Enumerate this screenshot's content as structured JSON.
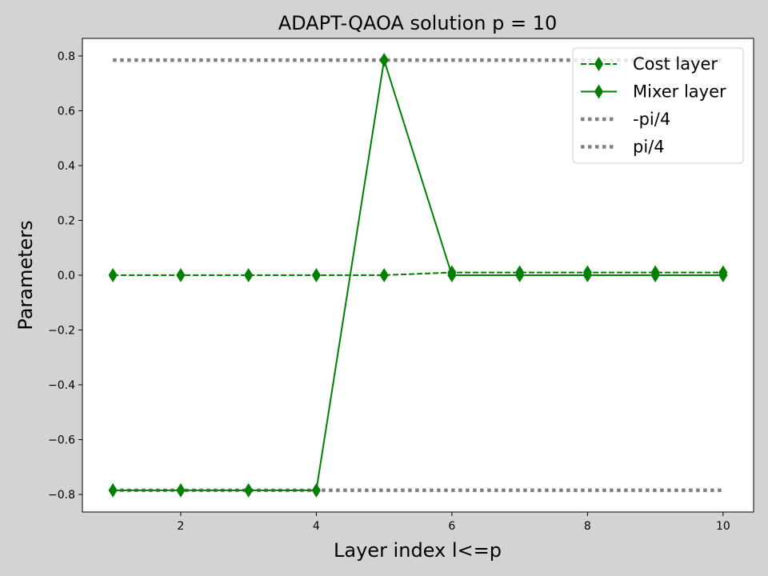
{
  "chart_data": {
    "type": "line",
    "title": "ADAPT-QAOA solution p = 10",
    "xlabel": "Layer index l<=p",
    "ylabel": "Parameters",
    "xlim": [
      0.55,
      10.45
    ],
    "ylim": [
      -0.864,
      0.864
    ],
    "xticks": [
      2,
      4,
      6,
      8,
      10
    ],
    "xtick_labels": [
      "2",
      "4",
      "6",
      "8",
      "10"
    ],
    "yticks": [
      -0.8,
      -0.6,
      -0.4,
      -0.2,
      0.0,
      0.2,
      0.4,
      0.6,
      0.8
    ],
    "ytick_labels": [
      "−0.8",
      "−0.6",
      "−0.4",
      "−0.2",
      "0.0",
      "0.2",
      "0.4",
      "0.6",
      "0.8"
    ],
    "grid": false,
    "legend_position": "top-right",
    "x": [
      1,
      2,
      3,
      4,
      5,
      6,
      7,
      8,
      9,
      10
    ],
    "series": [
      {
        "name": "Cost layer",
        "style": "dashed",
        "marker": "thin_diamond",
        "color": "#008000",
        "values": [
          0.0,
          0.0,
          0.0,
          0.0,
          0.0,
          0.01,
          0.01,
          0.01,
          0.01,
          0.01
        ]
      },
      {
        "name": "Mixer layer",
        "style": "solid",
        "marker": "thin_diamond",
        "color": "#008000",
        "values": [
          -0.785,
          -0.785,
          -0.785,
          -0.785,
          0.785,
          0.0,
          0.0,
          0.0,
          0.0,
          0.0
        ]
      },
      {
        "name": "-pi/4",
        "style": "dotted",
        "marker": "none",
        "color": "#808080",
        "values": [
          -0.785,
          -0.785,
          -0.785,
          -0.785,
          -0.785,
          -0.785,
          -0.785,
          -0.785,
          -0.785,
          -0.785
        ]
      },
      {
        "name": "pi/4",
        "style": "dotted",
        "marker": "none",
        "color": "#808080",
        "values": [
          0.785,
          0.785,
          0.785,
          0.785,
          0.785,
          0.785,
          0.785,
          0.785,
          0.785,
          0.785
        ]
      }
    ]
  }
}
